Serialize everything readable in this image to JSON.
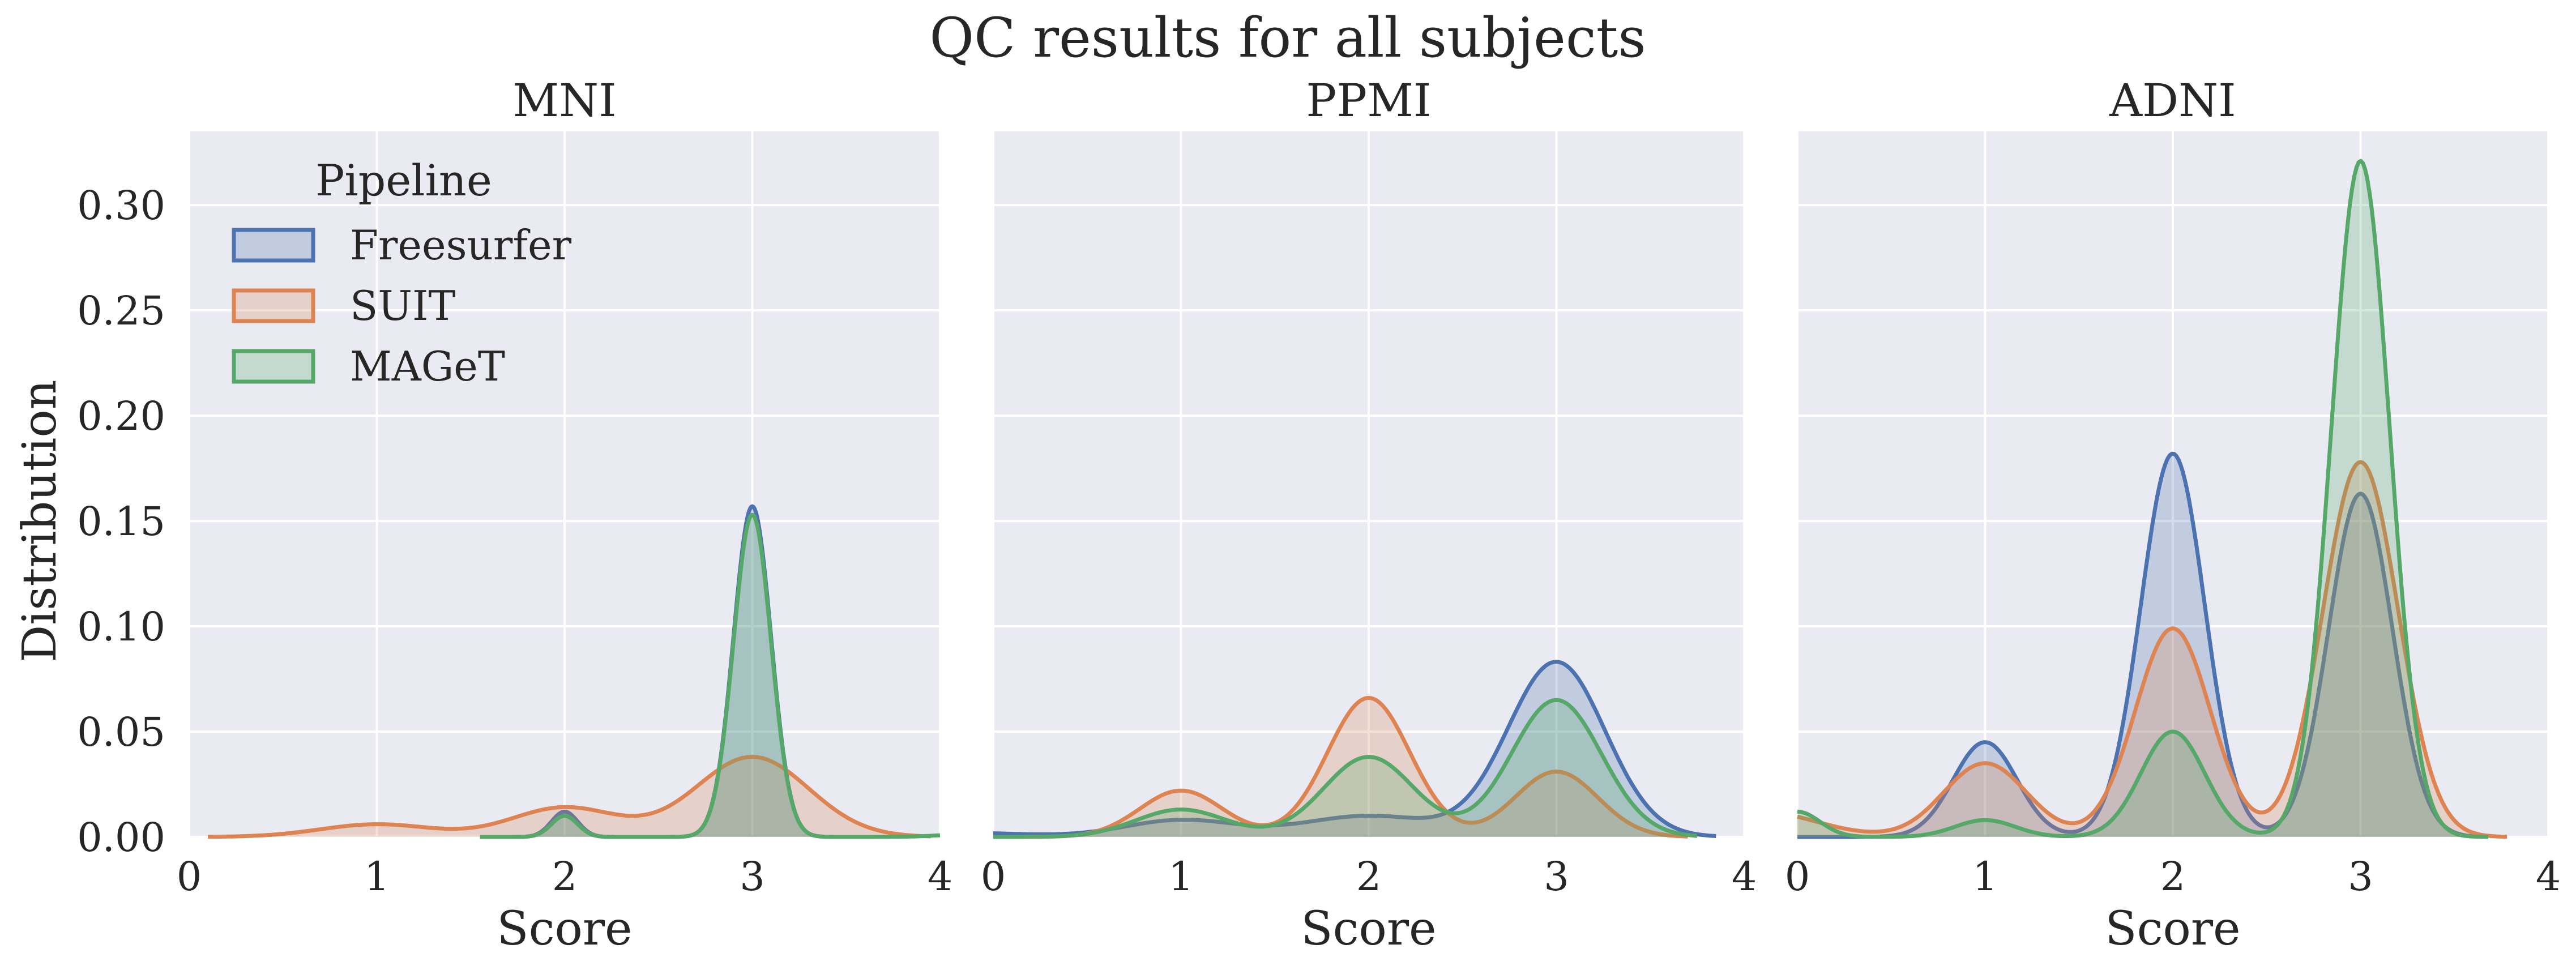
{
  "figure": {
    "title": "QC results for all subjects",
    "ylabel": "Distribution",
    "xlabel": "Score"
  },
  "legend": {
    "title": "Pipeline",
    "placement": "upper-left of first panel",
    "items": [
      {
        "label": "Freesurfer",
        "color": "#4c72b0"
      },
      {
        "label": "SUIT",
        "color": "#dd8452"
      },
      {
        "label": "MAGeT",
        "color": "#55a868"
      }
    ]
  },
  "chart_data": {
    "type": "area",
    "style": "kde-density",
    "grid": true,
    "background": "#eaeaf2",
    "xlim": [
      0,
      4
    ],
    "ylim": [
      0,
      0.335
    ],
    "xticks": [
      "0",
      "1",
      "2",
      "3",
      "4"
    ],
    "yticks": [
      "0.00",
      "0.05",
      "0.10",
      "0.15",
      "0.20",
      "0.25",
      "0.30"
    ],
    "panels": [
      {
        "title": "MNI",
        "series": [
          {
            "name": "Freesurfer",
            "color": "#4c72b0",
            "peaks": [
              [
                2,
                0.012,
                0.07
              ],
              [
                3,
                0.157,
                0.1
              ]
            ],
            "range": [
              1.55,
              3.5
            ]
          },
          {
            "name": "SUIT",
            "color": "#dd8452",
            "peaks": [
              [
                1,
                0.006,
                0.3
              ],
              [
                2,
                0.014,
                0.28
              ],
              [
                3,
                0.038,
                0.3
              ]
            ],
            "range": [
              0.1,
              3.95
            ]
          },
          {
            "name": "MAGeT",
            "color": "#55a868",
            "peaks": [
              [
                2,
                0.01,
                0.07
              ],
              [
                3,
                0.153,
                0.1
              ],
              [
                4.3,
                0.0025,
                0.2
              ]
            ],
            "range": [
              1.55,
              4
            ]
          }
        ]
      },
      {
        "title": "PPMI",
        "series": [
          {
            "name": "Freesurfer",
            "color": "#4c72b0",
            "peaks": [
              [
                -0.2,
                0.002,
                0.35
              ],
              [
                1,
                0.008,
                0.3
              ],
              [
                2,
                0.01,
                0.35
              ],
              [
                3,
                0.083,
                0.26
              ]
            ],
            "range": [
              0,
              3.85
            ]
          },
          {
            "name": "SUIT",
            "color": "#dd8452",
            "peaks": [
              [
                1,
                0.022,
                0.22
              ],
              [
                2,
                0.066,
                0.22
              ],
              [
                3,
                0.031,
                0.22
              ]
            ],
            "range": [
              0,
              3.7
            ]
          },
          {
            "name": "MAGeT",
            "color": "#55a868",
            "peaks": [
              [
                1,
                0.013,
                0.24
              ],
              [
                2,
                0.038,
                0.24
              ],
              [
                3,
                0.065,
                0.24
              ]
            ],
            "range": [
              0,
              3.75
            ]
          }
        ]
      },
      {
        "title": "ADNI",
        "series": [
          {
            "name": "Freesurfer",
            "color": "#4c72b0",
            "peaks": [
              [
                1,
                0.045,
                0.17
              ],
              [
                2,
                0.182,
                0.17
              ],
              [
                3,
                0.163,
                0.17
              ]
            ],
            "range": [
              0,
              3.65
            ]
          },
          {
            "name": "SUIT",
            "color": "#dd8452",
            "peaks": [
              [
                -0.2,
                0.012,
                0.3
              ],
              [
                1,
                0.035,
                0.22
              ],
              [
                2,
                0.099,
                0.2
              ],
              [
                3,
                0.178,
                0.2
              ]
            ],
            "range": [
              0,
              3.78
            ]
          },
          {
            "name": "MAGeT",
            "color": "#55a868",
            "peaks": [
              [
                0,
                0.012,
                0.12
              ],
              [
                1,
                0.008,
                0.16
              ],
              [
                2,
                0.05,
                0.17
              ],
              [
                3,
                0.321,
                0.155
              ]
            ],
            "range": [
              0,
              3.68
            ]
          }
        ]
      }
    ]
  }
}
